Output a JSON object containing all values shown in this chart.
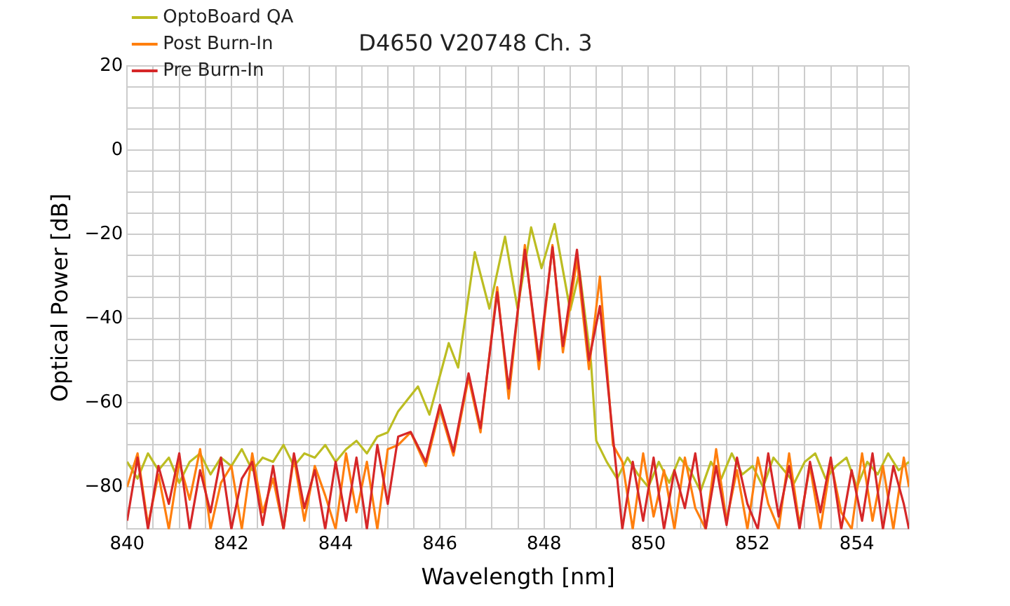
{
  "chart_data": {
    "type": "line",
    "title": "D4650 V20748 Ch. 3",
    "xlabel": "Wavelength [nm]",
    "ylabel": "Optical Power [dB]",
    "xlim": [
      840,
      855
    ],
    "xticks": [
      840,
      {
        "value": 840.5,
        "label": null
      },
      {
        "value": 841,
        "label": null
      },
      {
        "value": 841.5,
        "label": null
      },
      842,
      {
        "value": 842.5,
        "label": null
      },
      {
        "value": 843,
        "label": null
      },
      {
        "value": 843.5,
        "label": null
      },
      844,
      {
        "value": 844.5,
        "label": null
      },
      {
        "value": 845,
        "label": null
      },
      {
        "value": 845.5,
        "label": null
      },
      846,
      {
        "value": 846.5,
        "label": null
      },
      {
        "value": 847,
        "label": null
      },
      {
        "value": 847.5,
        "label": null
      },
      848,
      {
        "value": 848.5,
        "label": null
      },
      {
        "value": 849,
        "label": null
      },
      {
        "value": 849.5,
        "label": null
      },
      850,
      {
        "value": 850.5,
        "label": null
      },
      {
        "value": 851,
        "label": null
      },
      {
        "value": 851.5,
        "label": null
      },
      852,
      {
        "value": 852.5,
        "label": null
      },
      {
        "value": 853,
        "label": null
      },
      {
        "value": 853.5,
        "label": null
      },
      854,
      {
        "value": 854.5,
        "label": null
      },
      {
        "value": 855,
        "label": null
      }
    ],
    "ylim": [
      -90,
      20
    ],
    "yticks": [
      {
        "value": -90,
        "label": null
      },
      {
        "value": -85,
        "label": null
      },
      {
        "value": -80,
        "label": "−80"
      },
      {
        "value": -75,
        "label": null
      },
      {
        "value": -70,
        "label": null
      },
      {
        "value": -65,
        "label": null
      },
      {
        "value": -60,
        "label": "−60"
      },
      {
        "value": -55,
        "label": null
      },
      {
        "value": -50,
        "label": null
      },
      {
        "value": -45,
        "label": null
      },
      {
        "value": -40,
        "label": "−40"
      },
      {
        "value": -35,
        "label": null
      },
      {
        "value": -30,
        "label": null
      },
      {
        "value": -25,
        "label": null
      },
      {
        "value": -20,
        "label": "−20"
      },
      {
        "value": -15,
        "label": null
      },
      {
        "value": -10,
        "label": null
      },
      {
        "value": -5,
        "label": null
      },
      0,
      {
        "value": 5,
        "label": null
      },
      {
        "value": 10,
        "label": null
      },
      {
        "value": 15,
        "label": null
      },
      20
    ],
    "grid": true,
    "legend": "top left",
    "marker": "none",
    "line_style": "solid",
    "series": [
      {
        "name": "OptoBoard QA",
        "color": "#bcbd22",
        "x": [
          840,
          840.2,
          840.4,
          840.6,
          840.8,
          841,
          841.2,
          841.4,
          841.6,
          841.8,
          842,
          842.2,
          842.4,
          842.6,
          842.8,
          843,
          843.2,
          843.4,
          843.6,
          843.8,
          844,
          844.2,
          844.4,
          844.6,
          844.8,
          845,
          845.2,
          845.58,
          845.8,
          846.17,
          846.35,
          846.67,
          846.95,
          847.25,
          847.49,
          847.75,
          847.95,
          848.2,
          848.5,
          848.68,
          848.9,
          849,
          849.2,
          849.4,
          849.6,
          849.8,
          850,
          850.2,
          850.4,
          850.6,
          850.8,
          851,
          851.2,
          851.4,
          851.6,
          851.8,
          852,
          852.2,
          852.4,
          852.6,
          852.8,
          853,
          853.2,
          853.4,
          853.6,
          853.8,
          854,
          854.2,
          854.4,
          854.6,
          854.8,
          855
        ],
        "values": [
          -74,
          -78,
          -72,
          -76,
          -73,
          -79,
          -74,
          -72,
          -77,
          -73,
          -75,
          -71,
          -76,
          -73,
          -74,
          -70,
          -75,
          -72,
          -73,
          -70,
          -74,
          -71,
          -69,
          -72,
          -68,
          -67,
          -62,
          -56.1,
          -62.8,
          -45.8,
          -51.6,
          -24.2,
          -37.6,
          -20.5,
          -37.6,
          -18.3,
          -28,
          -17.5,
          -38,
          -28.7,
          -50.5,
          -69,
          -74,
          -78,
          -73,
          -77,
          -80,
          -74,
          -79,
          -73,
          -76,
          -81,
          -74,
          -78,
          -72,
          -77,
          -75,
          -80,
          -73,
          -76,
          -79,
          -74,
          -72,
          -78,
          -75,
          -73,
          -80,
          -74,
          -77,
          -72,
          -76,
          -74
        ]
      },
      {
        "name": "Post Burn-In",
        "color": "#ff7f0e",
        "x": [
          840,
          840.2,
          840.4,
          840.6,
          840.8,
          841,
          841.2,
          841.4,
          841.6,
          841.8,
          842,
          842.2,
          842.4,
          842.6,
          842.8,
          843,
          843.2,
          843.4,
          843.6,
          843.8,
          844,
          844.2,
          844.4,
          844.6,
          844.8,
          845,
          845.2,
          845.44,
          845.73,
          846,
          846.26,
          846.55,
          846.78,
          847.1,
          847.32,
          847.63,
          847.9,
          848.16,
          848.36,
          848.63,
          848.86,
          849.07,
          849.32,
          849.5,
          849.7,
          849.9,
          850.1,
          850.3,
          850.5,
          850.7,
          850.9,
          851.1,
          851.3,
          851.5,
          851.7,
          851.9,
          852.1,
          852.3,
          852.5,
          852.7,
          852.9,
          853.1,
          853.3,
          853.5,
          853.7,
          853.9,
          854.1,
          854.3,
          854.5,
          854.7,
          854.9,
          855
        ],
        "values": [
          -80,
          -72,
          -89,
          -77,
          -90,
          -74,
          -83,
          -71,
          -90,
          -79,
          -75,
          -90,
          -72,
          -86,
          -78,
          -90,
          -73,
          -88,
          -75,
          -82,
          -90,
          -72,
          -86,
          -74,
          -90,
          -71,
          -70,
          -67,
          -75,
          -61.5,
          -72.5,
          -54,
          -67,
          -32.5,
          -59,
          -22.5,
          -52,
          -22.5,
          -48,
          -26,
          -52,
          -30,
          -70,
          -74,
          -90,
          -72,
          -87,
          -76,
          -90,
          -73,
          -85,
          -90,
          -71,
          -88,
          -76,
          -90,
          -73,
          -84,
          -90,
          -72,
          -89,
          -75,
          -90,
          -74,
          -86,
          -90,
          -72,
          -88,
          -75,
          -90,
          -73,
          -80
        ]
      },
      {
        "name": "Pre Burn-In",
        "color": "#d62728",
        "x": [
          840,
          840.2,
          840.4,
          840.6,
          840.8,
          841,
          841.2,
          841.4,
          841.6,
          841.8,
          842,
          842.2,
          842.4,
          842.6,
          842.8,
          843,
          843.2,
          843.4,
          843.6,
          843.8,
          844,
          844.2,
          844.4,
          844.6,
          844.8,
          845,
          845.2,
          845.44,
          845.73,
          846,
          846.26,
          846.55,
          846.78,
          847.1,
          847.32,
          847.63,
          847.9,
          848.16,
          848.36,
          848.63,
          848.86,
          849.07,
          849.32,
          849.5,
          849.7,
          849.9,
          850.1,
          850.3,
          850.5,
          850.7,
          850.9,
          851.1,
          851.3,
          851.5,
          851.7,
          851.9,
          852.1,
          852.3,
          852.5,
          852.7,
          852.9,
          853.1,
          853.3,
          853.5,
          853.7,
          853.9,
          854.1,
          854.3,
          854.5,
          854.7,
          854.9,
          855
        ],
        "values": [
          -88,
          -73,
          -90,
          -75,
          -84,
          -72,
          -90,
          -76,
          -86,
          -73,
          -90,
          -78,
          -74,
          -89,
          -75,
          -90,
          -72,
          -85,
          -76,
          -90,
          -74,
          -88,
          -73,
          -90,
          -70,
          -84,
          -68,
          -66.9,
          -74,
          -60.5,
          -71.6,
          -53,
          -66,
          -33.7,
          -56.6,
          -23.6,
          -49.9,
          -23,
          -46.5,
          -23.6,
          -49.9,
          -37,
          -68,
          -90,
          -74,
          -88,
          -73,
          -90,
          -76,
          -85,
          -72,
          -90,
          -75,
          -89,
          -73,
          -84,
          -90,
          -72,
          -87,
          -75,
          -90,
          -74,
          -86,
          -73,
          -90,
          -76,
          -88,
          -72,
          -90,
          -75,
          -84,
          -90
        ]
      }
    ]
  }
}
